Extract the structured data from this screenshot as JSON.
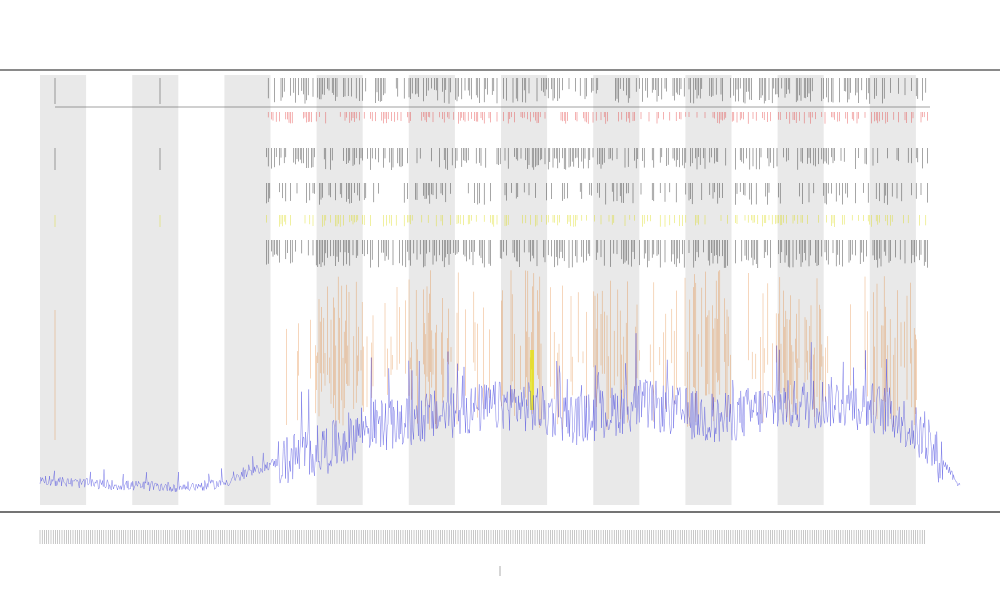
{
  "chart_data": {
    "type": "line",
    "title": "",
    "subtitle": "",
    "xlabel": "",
    "ylabel": "",
    "xlim": [
      0,
      1000
    ],
    "ylim": [
      0,
      100
    ],
    "grid": false,
    "legend": "top-left",
    "period": 100,
    "shaded_fraction": 0.5,
    "colors": {
      "series_line": "#3b3bdc",
      "tick_black": "#111111",
      "tick_red": "#e03030",
      "tick_yellow": "#d8d800",
      "orange": "#e07820",
      "yellow_bar": "#e6e600",
      "band": "#e9e9e9",
      "axis": "#444444"
    },
    "activity_onset": 300,
    "series": [
      {
        "values": [
          6.0,
          5.6,
          5.2,
          5.0,
          4.8,
          4.6,
          4.5,
          4.4,
          4.3,
          4.2,
          4.3,
          4.6,
          5.2,
          6.5,
          8.0,
          9.5,
          10.5,
          11.8,
          12.6,
          13.5,
          15.5,
          18.0,
          19.0,
          18.5,
          19.2,
          20.3,
          21.0,
          21.5,
          22.0,
          22.6,
          23.0,
          23.5,
          22.5,
          21.5,
          20.8,
          19.8,
          20.5,
          21.5,
          22.5,
          23.5,
          23.0,
          22.0,
          21.5,
          20.5,
          19.5,
          20.5,
          21.5,
          22.2,
          23.0,
          23.2,
          23.5,
          23.8,
          24.0,
          23.5,
          22.8,
          22.0,
          20.0,
          17.0,
          13.0,
          9.0,
          4.0
        ]
      }
    ]
  }
}
